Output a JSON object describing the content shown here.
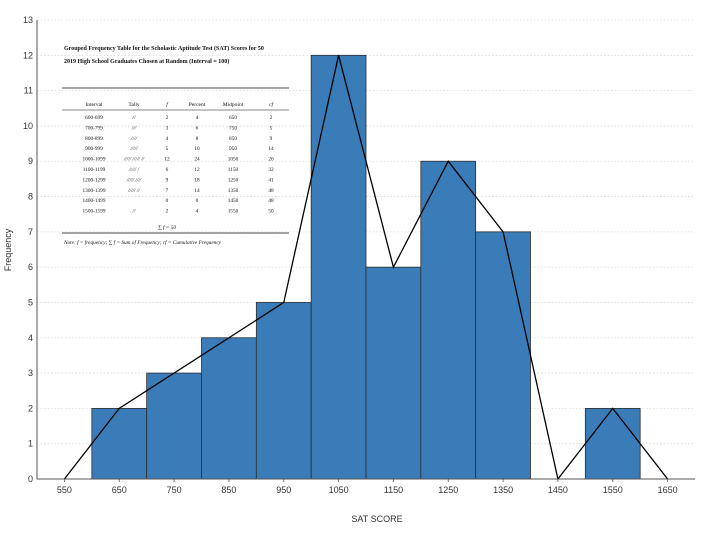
{
  "chart_data": {
    "type": "bar",
    "title": "",
    "xlabel": "SAT SCORE",
    "ylabel": "Frequency",
    "xlim": [
      500,
      1700
    ],
    "ylim": [
      0,
      13
    ],
    "x_ticks": [
      "550",
      "650",
      "750",
      "850",
      "950",
      "1050",
      "1150",
      "1250",
      "1350",
      "1450",
      "1550",
      "1650"
    ],
    "y_ticks": [
      "0",
      "1",
      "2",
      "3",
      "4",
      "5",
      "6",
      "7",
      "8",
      "9",
      "10",
      "11",
      "12",
      "13"
    ],
    "bins": [
      {
        "start": 600,
        "end": 700,
        "value": 2
      },
      {
        "start": 700,
        "end": 800,
        "value": 3
      },
      {
        "start": 800,
        "end": 900,
        "value": 4
      },
      {
        "start": 900,
        "end": 1000,
        "value": 5
      },
      {
        "start": 1000,
        "end": 1100,
        "value": 12
      },
      {
        "start": 1100,
        "end": 1200,
        "value": 6
      },
      {
        "start": 1200,
        "end": 1300,
        "value": 9
      },
      {
        "start": 1300,
        "end": 1400,
        "value": 7
      },
      {
        "start": 1400,
        "end": 1500,
        "value": 0
      },
      {
        "start": 1500,
        "end": 1600,
        "value": 2
      }
    ],
    "polygon": {
      "x": [
        550,
        650,
        950,
        1050,
        1150,
        1250,
        1350,
        1450,
        1550,
        1650
      ],
      "y": [
        0,
        2,
        5,
        12,
        6,
        9,
        7,
        0,
        2,
        0
      ]
    },
    "colors": {
      "bar": "#3a7cb8",
      "bar_edge": "#2d2d2d",
      "line": "#000000",
      "grid": "#d9d9d9"
    }
  },
  "table": {
    "title_line1": "Grouped Frequency Table for the Scholastic Aptitude Test (SAT) Scores for 50",
    "title_line2": "2019 High School Graduates Chosen at Random (Interval = 100)",
    "headers": [
      "Interval",
      "Tally",
      "f",
      "Percent",
      "Midpoint",
      "cf"
    ],
    "rows": [
      [
        "600-699",
        "//",
        "2",
        "4",
        "650",
        "2"
      ],
      [
        "700-799",
        "///",
        "3",
        "6",
        "750",
        "5"
      ],
      [
        "800-899",
        "////",
        "4",
        "8",
        "850",
        "9"
      ],
      [
        "900-999",
        "/////",
        "5",
        "10",
        "950",
        "14"
      ],
      [
        "1000-1099",
        "///// ///// //",
        "12",
        "24",
        "1050",
        "26"
      ],
      [
        "1100-1199",
        "///// /",
        "6",
        "12",
        "1150",
        "32"
      ],
      [
        "1200-1299",
        "///// ////",
        "9",
        "18",
        "1250",
        "41"
      ],
      [
        "1300-1399",
        "///// //",
        "7",
        "14",
        "1350",
        "48"
      ],
      [
        "1400-1499",
        "",
        "0",
        "0",
        "1450",
        "48"
      ],
      [
        "1500-1599",
        "//",
        "2",
        "4",
        "1550",
        "50"
      ]
    ],
    "sum_label": "∑ f = 50",
    "note": "Note: f = frequency; ∑ f = Sum of Frequency; cf = Cumulative Frequency"
  }
}
